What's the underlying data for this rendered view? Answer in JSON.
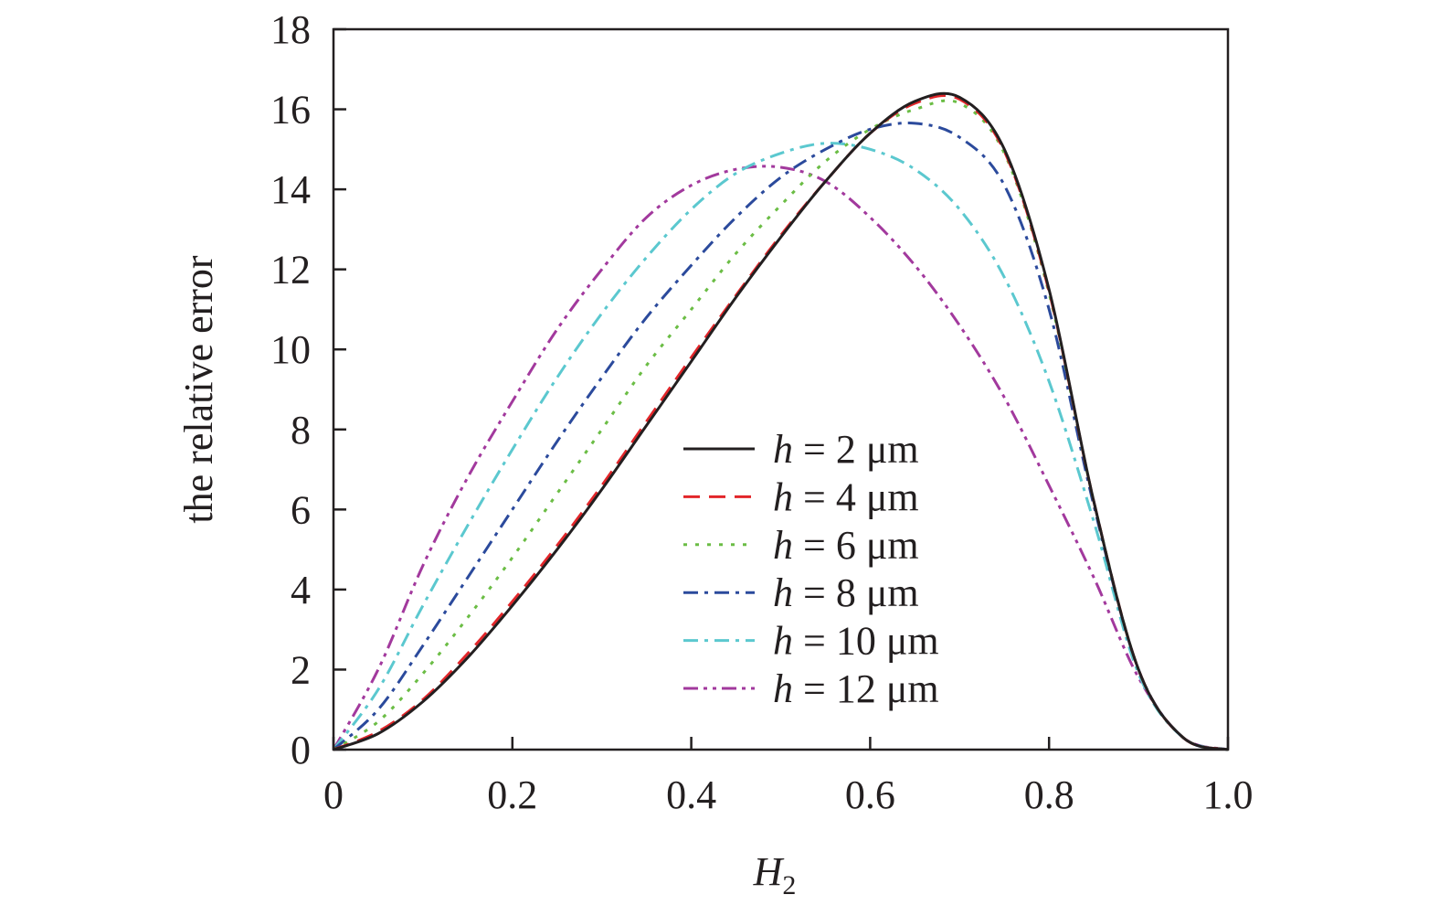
{
  "chart_data": {
    "type": "line",
    "title": "",
    "xlabel": "H",
    "xlabel_subscript": "2",
    "ylabel": "the relative error",
    "xlim": [
      0,
      1.0
    ],
    "ylim": [
      0,
      18
    ],
    "x_ticks": [
      0,
      0.2,
      0.4,
      0.6,
      0.8,
      1.0
    ],
    "x_tick_labels": [
      "0",
      "0.2",
      "0.4",
      "0.6",
      "0.8",
      "1.0"
    ],
    "y_ticks": [
      0,
      2,
      4,
      6,
      8,
      10,
      12,
      14,
      16,
      18
    ],
    "y_tick_labels": [
      "0",
      "2",
      "4",
      "6",
      "8",
      "10",
      "12",
      "14",
      "16",
      "18"
    ],
    "grid": false,
    "legend_position": "center-right",
    "series": [
      {
        "name": "h = 2 μm",
        "legend_italic": "h",
        "legend_rest": " = 2 μm",
        "color": "#231f20",
        "dash": "solid",
        "x": [
          0,
          0.05,
          0.1,
          0.15,
          0.2,
          0.25,
          0.3,
          0.35,
          0.4,
          0.45,
          0.5,
          0.55,
          0.6,
          0.65,
          0.7,
          0.75,
          0.8,
          0.85,
          0.9,
          0.95,
          1.0
        ],
        "values": [
          0,
          0.4,
          1.2,
          2.3,
          3.6,
          5.0,
          6.5,
          8.1,
          9.7,
          11.3,
          12.8,
          14.2,
          15.4,
          16.2,
          16.3,
          15.0,
          11.5,
          6.2,
          2.0,
          0.3,
          0
        ]
      },
      {
        "name": "h = 4 μm",
        "legend_italic": "h",
        "legend_rest": " = 4 μm",
        "color": "#e2262a",
        "dash": "18,10",
        "x": [
          0,
          0.05,
          0.1,
          0.15,
          0.2,
          0.25,
          0.3,
          0.35,
          0.4,
          0.45,
          0.5,
          0.55,
          0.6,
          0.65,
          0.7,
          0.75,
          0.8,
          0.85,
          0.9,
          0.95,
          1.0
        ],
        "values": [
          0,
          0.45,
          1.25,
          2.4,
          3.7,
          5.1,
          6.6,
          8.2,
          9.8,
          11.35,
          12.85,
          14.2,
          15.4,
          16.15,
          16.25,
          14.95,
          11.45,
          6.2,
          2.0,
          0.3,
          0
        ]
      },
      {
        "name": "h = 6 μm",
        "legend_italic": "h",
        "legend_rest": " = 6 μm",
        "color": "#6bbd45",
        "dash": "4,9",
        "x": [
          0,
          0.05,
          0.1,
          0.15,
          0.2,
          0.25,
          0.3,
          0.35,
          0.4,
          0.45,
          0.5,
          0.55,
          0.6,
          0.65,
          0.7,
          0.75,
          0.8,
          0.85,
          0.9,
          0.95,
          1.0
        ],
        "values": [
          0,
          0.7,
          1.9,
          3.3,
          4.8,
          6.4,
          8.0,
          9.6,
          11.0,
          12.4,
          13.6,
          14.7,
          15.5,
          16.0,
          16.15,
          14.9,
          11.4,
          6.2,
          2.0,
          0.3,
          0
        ]
      },
      {
        "name": "h = 8 μm",
        "legend_italic": "h",
        "legend_rest": " = 8 μm",
        "color": "#2b4a9c",
        "dash": "16,7,4,7",
        "x": [
          0,
          0.05,
          0.1,
          0.15,
          0.2,
          0.25,
          0.3,
          0.35,
          0.4,
          0.45,
          0.5,
          0.55,
          0.6,
          0.65,
          0.7,
          0.75,
          0.8,
          0.85,
          0.9,
          0.95,
          1.0
        ],
        "values": [
          0,
          1.0,
          2.6,
          4.3,
          6.0,
          7.7,
          9.3,
          10.8,
          12.1,
          13.3,
          14.3,
          15.0,
          15.5,
          15.65,
          15.3,
          14.1,
          11.0,
          6.1,
          2.0,
          0.3,
          0
        ]
      },
      {
        "name": "h = 10 μm",
        "legend_italic": "h",
        "legend_rest": " = 10 μm",
        "color": "#5bc8cf",
        "dash": "16,7,4,7",
        "x": [
          0,
          0.05,
          0.1,
          0.15,
          0.2,
          0.25,
          0.3,
          0.35,
          0.4,
          0.45,
          0.5,
          0.55,
          0.6,
          0.65,
          0.7,
          0.75,
          0.8,
          0.85,
          0.9,
          0.95,
          1.0
        ],
        "values": [
          0,
          1.5,
          3.6,
          5.6,
          7.5,
          9.3,
          10.9,
          12.3,
          13.5,
          14.4,
          14.9,
          15.15,
          15.0,
          14.5,
          13.5,
          11.8,
          9.2,
          5.7,
          1.9,
          0.3,
          0
        ]
      },
      {
        "name": "h = 12 μm",
        "legend_italic": "h",
        "legend_rest": " = 12 μm",
        "color": "#a2399d",
        "dash": "16,6,4,6,4,6",
        "x": [
          0,
          0.05,
          0.1,
          0.15,
          0.2,
          0.25,
          0.3,
          0.35,
          0.4,
          0.45,
          0.5,
          0.55,
          0.6,
          0.65,
          0.7,
          0.75,
          0.8,
          0.85,
          0.9,
          0.95,
          1.0
        ],
        "values": [
          0,
          2.0,
          4.6,
          6.8,
          8.7,
          10.5,
          12.0,
          13.3,
          14.1,
          14.5,
          14.55,
          14.2,
          13.3,
          12.1,
          10.6,
          8.8,
          6.6,
          4.3,
          1.8,
          0.3,
          0
        ]
      }
    ]
  }
}
